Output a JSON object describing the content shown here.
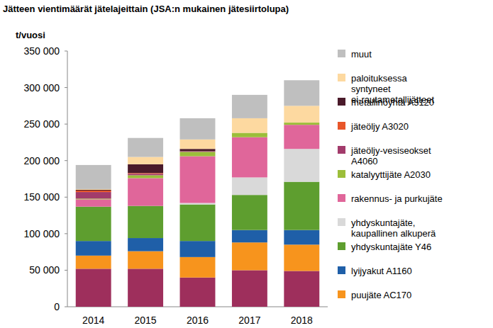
{
  "chart_data": {
    "type": "bar",
    "stacked": true,
    "grid": false,
    "legend": "right",
    "title": "Jätteen vientimäärät jätelajeittain (JSA:n mukainen jätesiirtolupa)",
    "y_label": "t/vuosi",
    "categories": [
      "2014",
      "2015",
      "2016",
      "2017",
      "2018"
    ],
    "ylim": [
      0,
      350000
    ],
    "yticks": [
      0,
      {
        "value": 50000,
        "label": "50 000"
      },
      {
        "value": 100000,
        "label": "100 000"
      },
      {
        "value": 150000,
        "label": "150 000"
      },
      {
        "value": 200000,
        "label": "200 000"
      },
      {
        "value": 250000,
        "label": "250 000"
      },
      {
        "value": 300000,
        "label": "300 000"
      },
      {
        "value": 350000,
        "label": "350 000"
      }
    ],
    "series": [
      {
        "name": null,
        "color": "#9e2f5c",
        "values": [
          52000,
          52000,
          40000,
          50000,
          49000
        ]
      },
      {
        "name": "puujäte AC170",
        "color": "#f7941d",
        "values": [
          18000,
          24000,
          28000,
          38000,
          36000
        ]
      },
      {
        "name": "lyijyakut A1160",
        "color": "#1f5fa8",
        "values": [
          20000,
          18000,
          22000,
          17000,
          20000
        ]
      },
      {
        "name": "yhdyskuntajäte Y46",
        "color": "#5e9e2f",
        "values": [
          47000,
          44000,
          50000,
          48000,
          66000
        ]
      },
      {
        "name": "yhdyskuntajäte, kaupallinen alkuperä",
        "color": "#d9d9d9",
        "values": [
          0,
          0,
          2000,
          24000,
          45000
        ]
      },
      {
        "name": "rakennus- ja purkujäte",
        "color": "#e0669a",
        "values": [
          10000,
          38000,
          64000,
          55000,
          33000
        ]
      },
      {
        "name": "katalyyttijäte A2030",
        "color": "#9cbe3a",
        "values": [
          1000,
          4000,
          6000,
          6000,
          3000
        ]
      },
      {
        "name": "jäteöljy-vesiseokset A4060",
        "color": "#a23b6b",
        "values": [
          9000,
          2000,
          1000,
          0,
          0
        ]
      },
      {
        "name": "jäteöljy A3020",
        "color": "#e8562a",
        "values": [
          2000,
          1000,
          0,
          0,
          0
        ]
      },
      {
        "name": "metallinöyhtä A3120",
        "color": "#4a1a2a",
        "values": [
          1000,
          12000,
          3000,
          0,
          0
        ]
      },
      {
        "name": "paloituksessa syntyneet ei-rautametallijätteet",
        "color": "#fdd9a0",
        "values": [
          1000,
          10000,
          13000,
          20000,
          23000
        ]
      },
      {
        "name": "muut",
        "color": "#bfbfbf",
        "values": [
          33000,
          26000,
          29000,
          32000,
          35000
        ]
      }
    ]
  }
}
